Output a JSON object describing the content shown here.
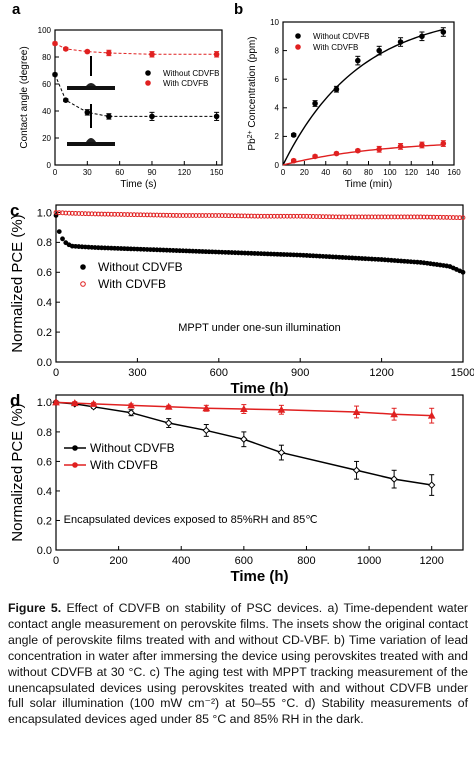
{
  "caption": {
    "lead": "Figure 5.",
    "text": "Effect of CDVFB on stability of PSC devices. a) Time-dependent water contact angle measurement on perovskite films. The insets show the original contact angle of perovskite films treated with and without CD-VBF. b) Time variation of lead concentration in water after immersing the device using perovskites treated with and without CDVFB at 30 °C. c) The aging test with MPPT tracking measurement of the unencapsulated devices using perovskites treated with and without CDVFB under full solar illumination (100 mW cm⁻²) at 50–55 °C. d) Stability measurements of encapsulated devices aged under 85 °C and 85% RH in the dark."
  },
  "chart_data": [
    {
      "panel": "a",
      "type": "scatter",
      "xlabel": "Time (s)",
      "ylabel": "Contact angle (degree)",
      "xlim": [
        0,
        155
      ],
      "ylim": [
        0,
        100
      ],
      "xticks": [
        0,
        30,
        60,
        90,
        120,
        150
      ],
      "yticks": [
        0,
        20,
        40,
        60,
        80,
        100
      ],
      "legend_position": "middle-right",
      "series": [
        {
          "name": "Without CDVFB",
          "color": "#000000",
          "marker": "circle",
          "line": "dashed",
          "x": [
            0,
            10,
            30,
            50,
            90,
            150
          ],
          "y": [
            67,
            48,
            39,
            36,
            36,
            36
          ],
          "err": [
            1,
            1,
            2,
            2,
            3,
            3
          ]
        },
        {
          "name": "With CDVFB",
          "color": "#e02020",
          "marker": "circle",
          "line": "dashed",
          "x": [
            0,
            10,
            30,
            50,
            90,
            150
          ],
          "y": [
            90,
            86,
            84,
            83,
            82,
            82
          ],
          "err": [
            1,
            1,
            1,
            2,
            2,
            2
          ]
        }
      ]
    },
    {
      "panel": "b",
      "type": "scatter",
      "xlabel": "Time (min)",
      "ylabel_main": "Pb",
      "ylabel_sup": "2+",
      "ylabel_rest": " Concentration (ppm)",
      "xlim": [
        0,
        160
      ],
      "ylim": [
        0,
        10
      ],
      "xticks": [
        0,
        20,
        40,
        60,
        80,
        100,
        120,
        140,
        160
      ],
      "yticks": [
        0,
        2,
        4,
        6,
        8,
        10
      ],
      "legend_position": "top-left",
      "series": [
        {
          "name": "Without CDVFB",
          "color": "#000000",
          "marker": "circle",
          "x": [
            10,
            30,
            50,
            70,
            90,
            110,
            130,
            150
          ],
          "y": [
            2.1,
            4.3,
            5.3,
            7.3,
            8.0,
            8.6,
            9.0,
            9.3
          ],
          "err": [
            0.1,
            0.2,
            0.2,
            0.3,
            0.3,
            0.3,
            0.3,
            0.3
          ]
        },
        {
          "name": "With CDVFB",
          "color": "#e02020",
          "marker": "circle",
          "x": [
            10,
            30,
            50,
            70,
            90,
            110,
            130,
            150
          ],
          "y": [
            0.3,
            0.6,
            0.8,
            1.0,
            1.1,
            1.3,
            1.4,
            1.5
          ],
          "err": [
            0.1,
            0.1,
            0.1,
            0.1,
            0.2,
            0.2,
            0.2,
            0.2
          ]
        }
      ]
    },
    {
      "panel": "c",
      "type": "line",
      "xlabel": "Time (h)",
      "ylabel": "Normalized PCE (%)",
      "annotation": "MPPT under one-sun illumination",
      "xlim": [
        0,
        1500
      ],
      "ylim": [
        0,
        1.05
      ],
      "xticks": [
        0,
        300,
        600,
        900,
        1200,
        1500
      ],
      "yticks": [
        0.0,
        0.2,
        0.4,
        0.6,
        0.8,
        1.0
      ],
      "legend_position": "middle-left",
      "series": [
        {
          "name": "Without CDVFB",
          "color": "#000000",
          "x": [
            0,
            10,
            25,
            40,
            60,
            100,
            150,
            300,
            450,
            600,
            750,
            900,
            1050,
            1200,
            1350,
            1450,
            1500
          ],
          "y": [
            0.98,
            0.88,
            0.82,
            0.79,
            0.775,
            0.77,
            0.765,
            0.755,
            0.745,
            0.735,
            0.725,
            0.715,
            0.7,
            0.685,
            0.665,
            0.64,
            0.6
          ]
        },
        {
          "name": "With CDVFB",
          "color": "#e02020",
          "x": [
            0,
            50,
            150,
            300,
            450,
            600,
            750,
            900,
            1050,
            1200,
            1350,
            1500
          ],
          "y": [
            1.0,
            0.995,
            0.99,
            0.985,
            0.98,
            0.98,
            0.975,
            0.975,
            0.97,
            0.97,
            0.97,
            0.965
          ]
        }
      ]
    },
    {
      "panel": "d",
      "type": "line",
      "xlabel": "Time (h)",
      "ylabel": "Normalized PCE (%)",
      "annotation": "Encapsulated devices exposed to 85%RH and 85℃",
      "xlim": [
        0,
        1300
      ],
      "ylim": [
        0,
        1.05
      ],
      "xticks": [
        0,
        200,
        400,
        600,
        800,
        1000,
        1200
      ],
      "yticks": [
        0.0,
        0.2,
        0.4,
        0.6,
        0.8,
        1.0
      ],
      "legend_position": "middle-left",
      "series": [
        {
          "name": "Without CDVFB",
          "color": "#000000",
          "marker": "diamond",
          "x": [
            0,
            60,
            120,
            240,
            360,
            480,
            600,
            720,
            960,
            1080,
            1200
          ],
          "y": [
            1.0,
            0.99,
            0.97,
            0.93,
            0.86,
            0.81,
            0.75,
            0.66,
            0.54,
            0.48,
            0.44
          ],
          "err": [
            0.01,
            0.01,
            0.01,
            0.02,
            0.03,
            0.04,
            0.05,
            0.05,
            0.06,
            0.06,
            0.07
          ]
        },
        {
          "name": "With CDVFB",
          "color": "#e02020",
          "marker": "triangle",
          "x": [
            0,
            60,
            120,
            240,
            360,
            480,
            600,
            720,
            960,
            1080,
            1200
          ],
          "y": [
            1.0,
            0.995,
            0.99,
            0.98,
            0.97,
            0.96,
            0.955,
            0.95,
            0.935,
            0.92,
            0.91
          ],
          "err": [
            0.01,
            0.01,
            0.01,
            0.01,
            0.01,
            0.02,
            0.03,
            0.03,
            0.04,
            0.04,
            0.05
          ]
        }
      ]
    }
  ]
}
